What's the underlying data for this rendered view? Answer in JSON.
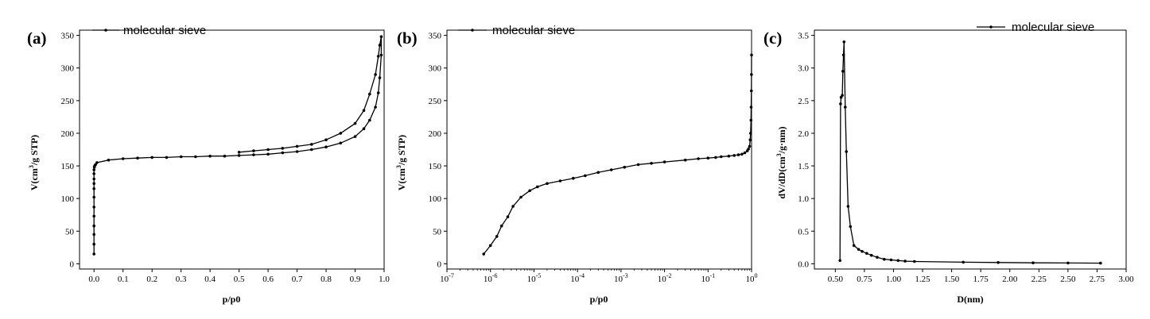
{
  "chart_data": [
    {
      "panel": "(a)",
      "type": "line",
      "xlabel": "p/p0",
      "ylabel_parts": [
        "V(cm",
        "3",
        "/g STP)"
      ],
      "xlim": [
        -0.05,
        1.0
      ],
      "ylim": [
        -8,
        358
      ],
      "xticks": [
        0.0,
        0.1,
        0.2,
        0.3,
        0.4,
        0.5,
        0.6,
        0.7,
        0.8,
        0.9,
        1.0
      ],
      "xtick_labels": [
        "0.0",
        "0.1",
        "0.2",
        "0.3",
        "0.4",
        "0.5",
        "0.6",
        "0.7",
        "0.8",
        "0.9",
        "1.0"
      ],
      "yticks": [
        0,
        50,
        100,
        150,
        200,
        250,
        300,
        350
      ],
      "ytick_labels": [
        "0",
        "50",
        "100",
        "150",
        "200",
        "250",
        "300",
        "350"
      ],
      "legend": "top-left",
      "series": [
        {
          "name": "molecular sieve",
          "x": [
            0.0,
            0.0,
            0.0,
            0.0,
            0.0,
            0.0,
            0.0,
            0.0,
            0.0,
            0.0,
            0.0,
            0.0,
            0.001,
            0.002,
            0.005,
            0.01,
            0.05,
            0.1,
            0.15,
            0.2,
            0.25,
            0.3,
            0.35,
            0.4,
            0.45,
            0.5,
            0.55,
            0.6,
            0.65,
            0.7,
            0.75,
            0.8,
            0.85,
            0.9,
            0.93,
            0.95,
            0.97,
            0.98,
            0.985,
            0.99,
            0.99,
            0.985,
            0.98,
            0.97,
            0.95,
            0.93,
            0.9,
            0.85,
            0.8,
            0.75,
            0.7,
            0.65,
            0.6,
            0.55,
            0.5
          ],
          "y": [
            15,
            30,
            45,
            58,
            73,
            87,
            102,
            115,
            123,
            130,
            138,
            144,
            148,
            150,
            152,
            155,
            159,
            161,
            162,
            163,
            163,
            164,
            164,
            165,
            165,
            166,
            167,
            168,
            170,
            172,
            175,
            179,
            185,
            195,
            207,
            220,
            240,
            262,
            285,
            320,
            348,
            335,
            318,
            290,
            260,
            235,
            215,
            200,
            190,
            183,
            180,
            177,
            175,
            173,
            171
          ]
        }
      ]
    },
    {
      "panel": "(b)",
      "type": "line",
      "xscale": "log",
      "xlabel": "p/p0",
      "ylabel_parts": [
        "V(cm",
        "3",
        "/g STP)"
      ],
      "xlim": [
        1e-07,
        1
      ],
      "ylim": [
        -8,
        358
      ],
      "xticks": [
        1e-07,
        1e-06,
        1e-05,
        0.0001,
        0.001,
        0.01,
        0.1,
        1
      ],
      "xtick_labels": [
        [
          "10",
          "-7"
        ],
        [
          "10",
          "-6"
        ],
        [
          "10",
          "-5"
        ],
        [
          "10",
          "-4"
        ],
        [
          "10",
          "-3"
        ],
        [
          "10",
          "-2"
        ],
        [
          "10",
          "-1"
        ],
        [
          "10",
          "0"
        ]
      ],
      "yticks": [
        0,
        50,
        100,
        150,
        200,
        250,
        300,
        350
      ],
      "ytick_labels": [
        "0",
        "50",
        "100",
        "150",
        "200",
        "250",
        "300",
        "350"
      ],
      "legend": "top-left",
      "series": [
        {
          "name": "molecular sieve",
          "x": [
            7e-07,
            1e-06,
            1.4e-06,
            1.8e-06,
            2.5e-06,
            3.3e-06,
            5e-06,
            8e-06,
            1.2e-05,
            2e-05,
            4e-05,
            8e-05,
            0.00015,
            0.0003,
            0.0006,
            0.0012,
            0.0025,
            0.005,
            0.01,
            0.03,
            0.06,
            0.1,
            0.15,
            0.2,
            0.3,
            0.4,
            0.5,
            0.6,
            0.7,
            0.8,
            0.85,
            0.9,
            0.93,
            0.95,
            0.97,
            0.98,
            0.99,
            0.995,
            1.0
          ],
          "y": [
            15,
            28,
            42,
            58,
            72,
            88,
            102,
            112,
            118,
            123,
            127,
            131,
            135,
            140,
            144,
            148,
            152,
            154,
            156,
            159,
            161,
            162,
            163,
            164,
            165,
            166,
            167,
            168,
            170,
            173,
            176,
            180,
            190,
            200,
            220,
            240,
            265,
            290,
            320
          ]
        }
      ]
    },
    {
      "panel": "(c)",
      "type": "line",
      "xlabel": "D(nm)",
      "ylabel_parts": [
        "dV/dD(cm",
        "3",
        "/g·nm)"
      ],
      "xlim": [
        0.32,
        3.0
      ],
      "ylim": [
        -0.08,
        3.58
      ],
      "xticks": [
        0.5,
        0.75,
        1.0,
        1.25,
        1.5,
        1.75,
        2.0,
        2.25,
        2.5,
        2.75,
        3.0
      ],
      "xtick_labels": [
        "0.50",
        "0.75",
        "1.00",
        "1.25",
        "1.50",
        "1.75",
        "2.00",
        "2.25",
        "2.50",
        "2.75",
        "3.00"
      ],
      "yticks": [
        0.0,
        0.5,
        1.0,
        1.5,
        2.0,
        2.5,
        3.0,
        3.5
      ],
      "ytick_labels": [
        "0.0",
        "0.5",
        "1.0",
        "1.5",
        "2.0",
        "2.5",
        "3.0",
        "3.5"
      ],
      "legend": "top-right",
      "series": [
        {
          "name": "molecular sieve",
          "x": [
            0.54,
            0.545,
            0.55,
            0.56,
            0.565,
            0.57,
            0.575,
            0.585,
            0.595,
            0.61,
            0.63,
            0.66,
            0.7,
            0.73,
            0.77,
            0.81,
            0.86,
            0.92,
            0.98,
            1.04,
            1.1,
            1.18,
            1.6,
            1.9,
            2.2,
            2.5,
            2.78
          ],
          "y": [
            0.05,
            2.45,
            2.55,
            2.58,
            2.95,
            3.2,
            3.4,
            2.4,
            1.72,
            0.88,
            0.57,
            0.28,
            0.22,
            0.19,
            0.16,
            0.13,
            0.1,
            0.07,
            0.06,
            0.05,
            0.04,
            0.035,
            0.025,
            0.02,
            0.015,
            0.012,
            0.01
          ]
        }
      ]
    }
  ]
}
